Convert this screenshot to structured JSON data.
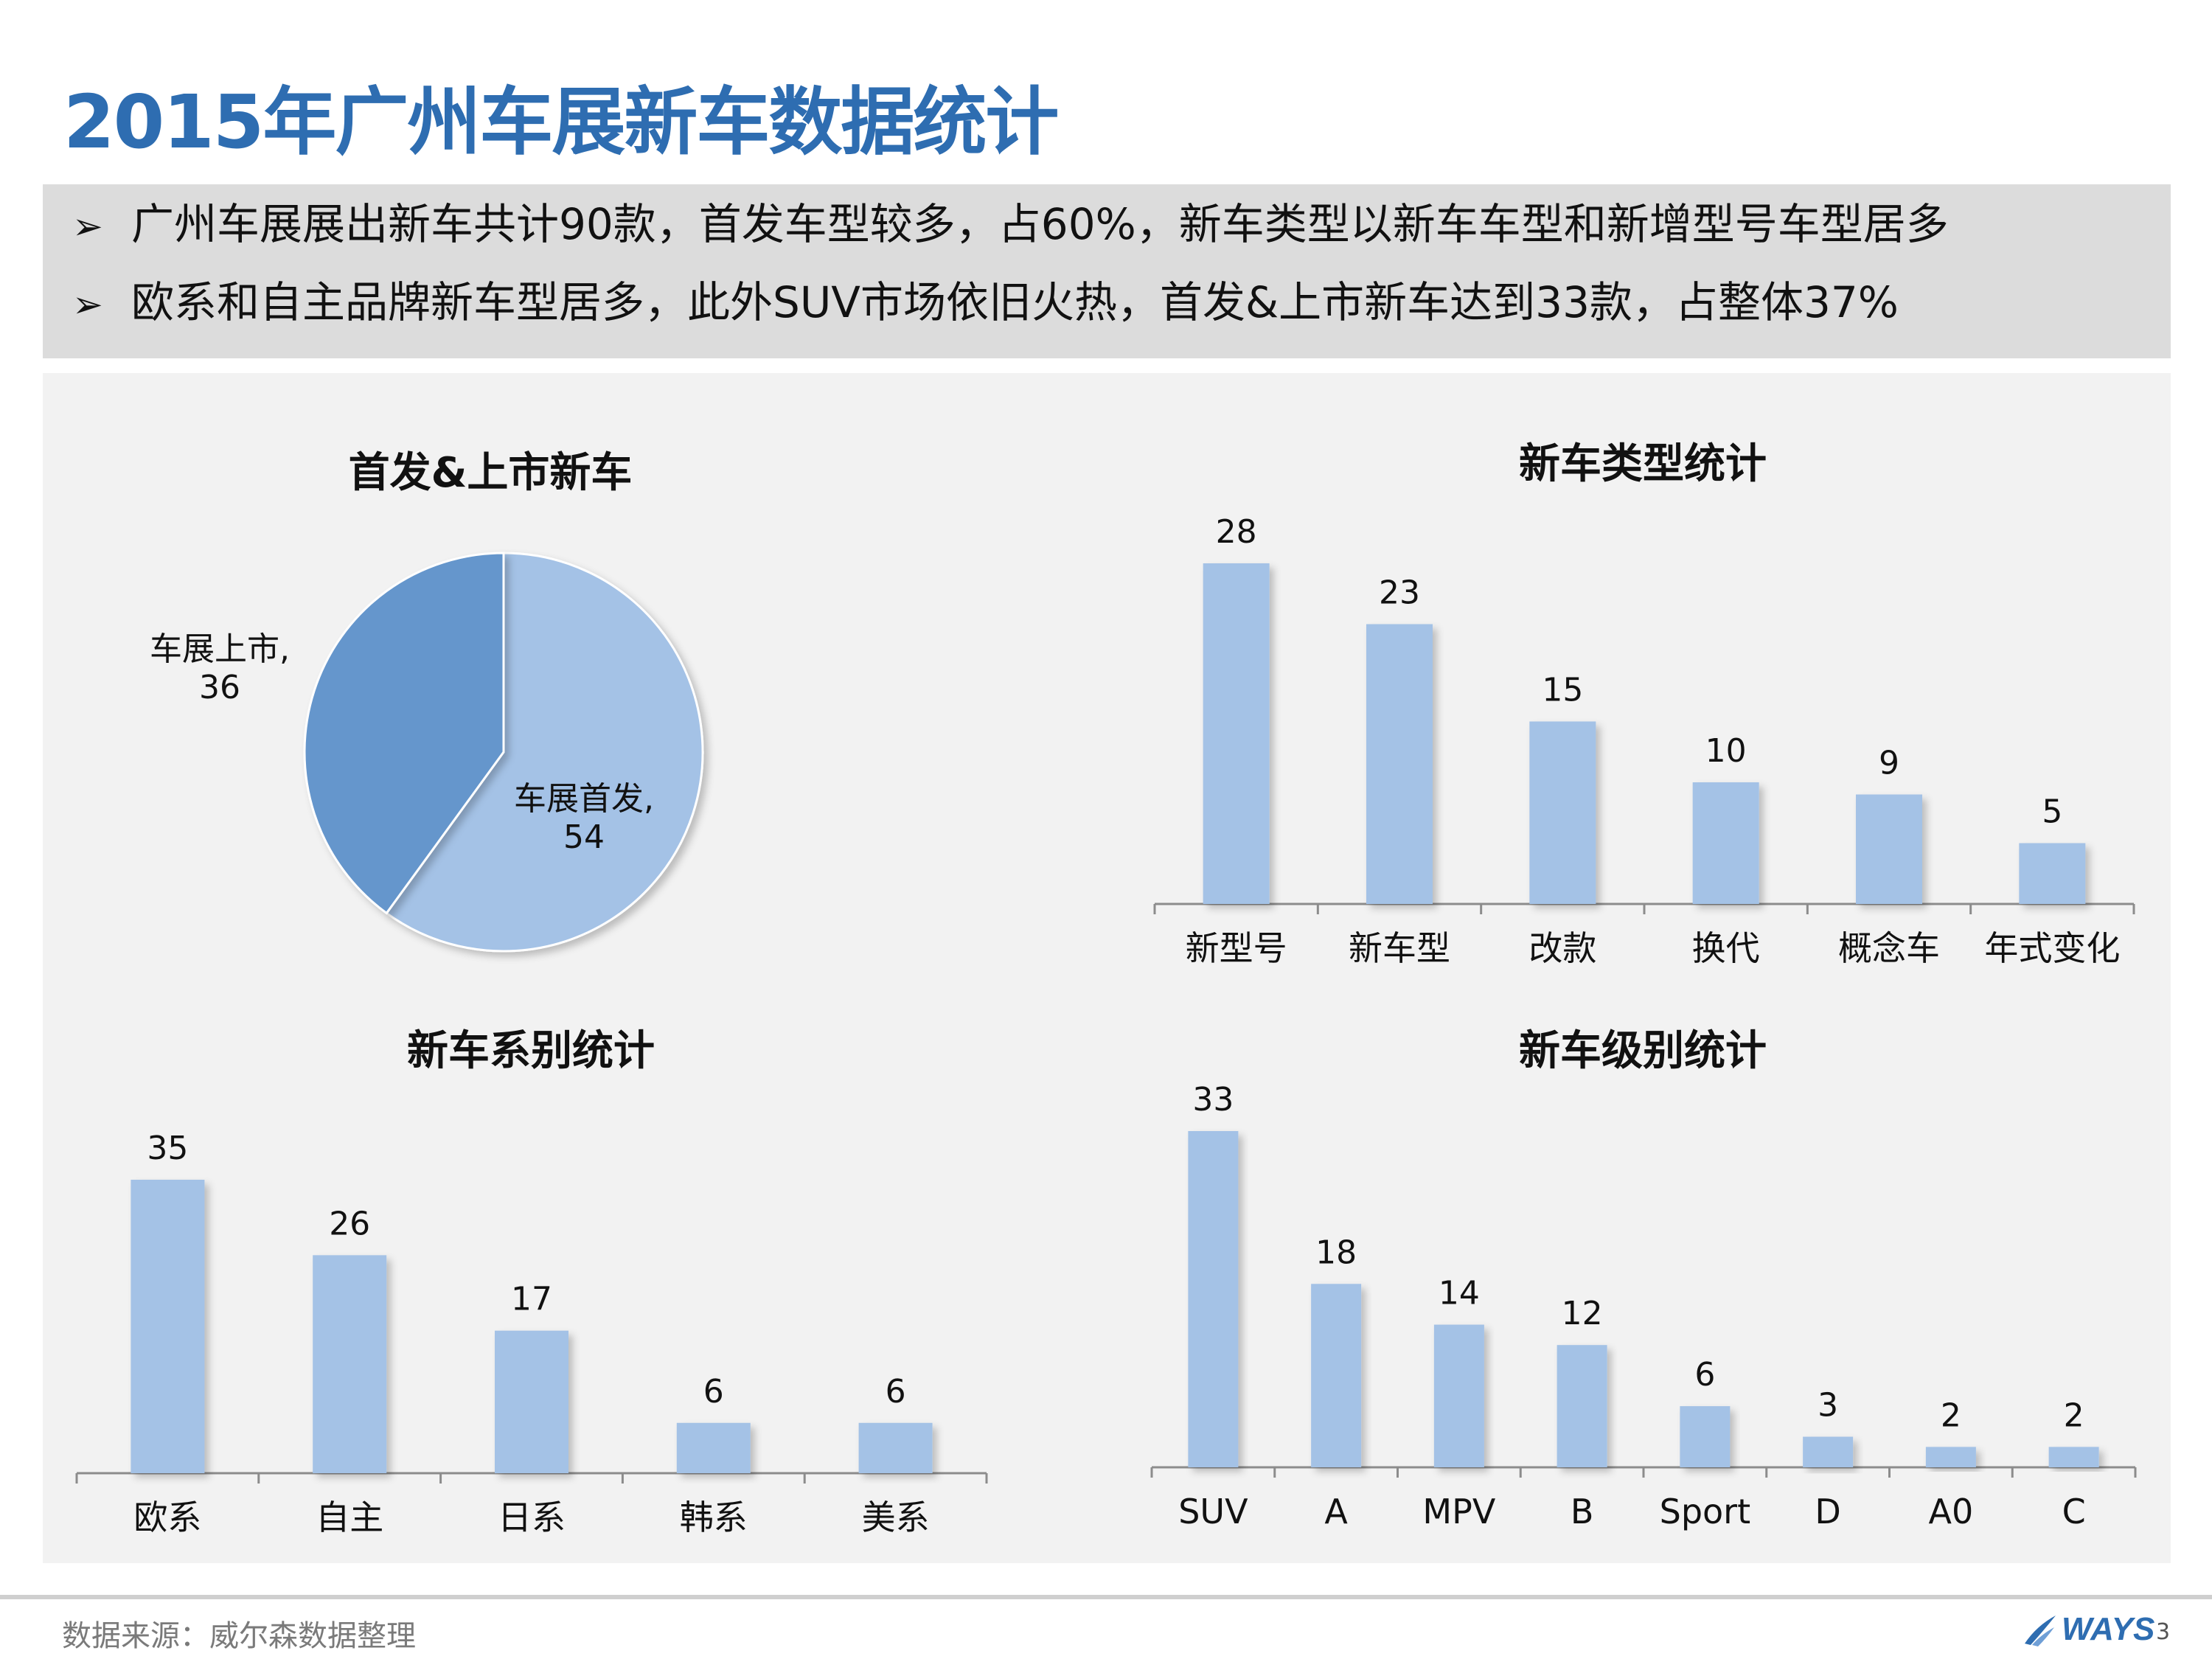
{
  "title": "2015年广州车展新车数据统计",
  "bullets": {
    "marker": "➢",
    "items": [
      "广州车展展出新车共计90款，首发车型较多，占60%，新车类型以新车车型和新增型号车型居多",
      "欧系和自主品牌新车型居多，此外SUV市场依旧火热，首发&上市新车达到33款，占整体37%"
    ]
  },
  "colors": {
    "title": "#2e6db1",
    "bar": "#a4c2e6",
    "pie_light": "#a4c2e6",
    "pie_dark": "#6596cc",
    "panel_bg": "#f2f2f2",
    "bullet_bg": "#dcdcdc"
  },
  "chart_data": [
    {
      "id": "pie",
      "type": "pie",
      "title": "首发&上市新车",
      "slices": [
        {
          "label": "车展首发,",
          "value": 54,
          "color": "#a4c2e6"
        },
        {
          "label": "车展上市,",
          "value": 36,
          "color": "#6596cc"
        }
      ]
    },
    {
      "id": "type",
      "type": "bar",
      "title": "新车类型统计",
      "categories": [
        "新型号",
        "新车型",
        "改款",
        "换代",
        "概念车",
        "年式变化"
      ],
      "values": [
        28,
        23,
        15,
        10,
        9,
        5
      ],
      "data_labels": true,
      "ylim": [
        0,
        28
      ]
    },
    {
      "id": "series",
      "type": "bar",
      "title": "新车系别统计",
      "categories": [
        "欧系",
        "自主",
        "日系",
        "韩系",
        "美系"
      ],
      "values": [
        35,
        26,
        17,
        6,
        6
      ],
      "data_labels": true,
      "ylim": [
        0,
        35
      ]
    },
    {
      "id": "level",
      "type": "bar",
      "title": "新车级别统计",
      "categories": [
        "SUV",
        "A",
        "MPV",
        "B",
        "Sport",
        "D",
        "A0",
        "C"
      ],
      "values": [
        33,
        18,
        14,
        12,
        6,
        3,
        2,
        2
      ],
      "data_labels": true,
      "ylim": [
        0,
        33
      ]
    }
  ],
  "footer": {
    "source": "数据来源：威尔森数据整理",
    "logo": "WAYS",
    "page_number": "3"
  }
}
